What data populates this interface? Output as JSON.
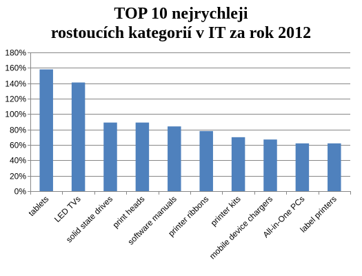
{
  "chart_data": {
    "type": "bar",
    "title_lines": [
      "TOP 10 nejrychleji",
      "rostoucích kategorií v IT za rok 2012"
    ],
    "categories": [
      "tablets",
      "LED TVs",
      "solid state drives",
      "print heads",
      "software manuals",
      "printer ribbons",
      "printer kits",
      "mobile device chargers",
      "All-in-One PCs",
      "label printers"
    ],
    "values": [
      158,
      141,
      89,
      89,
      84,
      78,
      70,
      67,
      62,
      62
    ],
    "ylim": [
      0,
      180
    ],
    "yticks": [
      0,
      20,
      40,
      60,
      80,
      100,
      120,
      140,
      160,
      180
    ],
    "ytick_labels": [
      "0%",
      "20%",
      "40%",
      "60%",
      "80%",
      "100%",
      "120%",
      "140%",
      "160%",
      "180%"
    ],
    "grid": true,
    "bar_color": "#4F81BD",
    "grid_color": "#868686"
  }
}
